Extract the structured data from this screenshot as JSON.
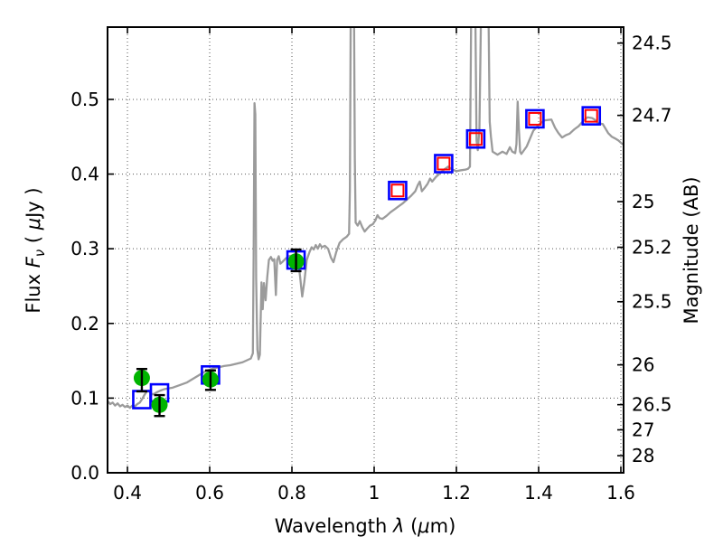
{
  "chart_data": {
    "type": "line",
    "title": "",
    "xlabel_segments": [
      {
        "t": "Wavelength ",
        "s": "n"
      },
      {
        "t": "λ",
        "s": "i"
      },
      {
        "t": " (",
        "s": "n"
      },
      {
        "t": "μ",
        "s": "i"
      },
      {
        "t": "m)",
        "s": "n"
      }
    ],
    "ylabel_left_segments": [
      {
        "t": "Flux ",
        "s": "n"
      },
      {
        "t": "F",
        "s": "i"
      },
      {
        "t": "ν",
        "s": "sub"
      },
      {
        "t": " ( ",
        "s": "n"
      },
      {
        "t": "μ",
        "s": "i"
      },
      {
        "t": "Jy )",
        "s": "n"
      }
    ],
    "ylabel_right": "Magnitude (AB)",
    "xlim": [
      0.3516,
      1.6066
    ],
    "ylim": [
      0.0,
      0.5968
    ],
    "grid": "dotted",
    "x_ticks": [
      {
        "value": 0.4,
        "label": "0.4"
      },
      {
        "value": 0.6,
        "label": "0.6"
      },
      {
        "value": 0.8,
        "label": "0.8"
      },
      {
        "value": 1.0,
        "label": "1"
      },
      {
        "value": 1.2,
        "label": "1.2"
      },
      {
        "value": 1.4,
        "label": "1.4"
      },
      {
        "value": 1.6,
        "label": "1.6"
      }
    ],
    "y_ticks_left": [
      {
        "value": 0.0,
        "label": "0.0"
      },
      {
        "value": 0.1,
        "label": "0.1"
      },
      {
        "value": 0.2,
        "label": "0.2"
      },
      {
        "value": 0.3,
        "label": "0.3"
      },
      {
        "value": 0.4,
        "label": "0.4"
      },
      {
        "value": 0.5,
        "label": "0.5"
      }
    ],
    "y_ticks_right": [
      {
        "label": "24.5",
        "flux": 0.5754
      },
      {
        "label": "24.7",
        "flux": 0.4786
      },
      {
        "label": "25",
        "flux": 0.3631
      },
      {
        "label": "25.2",
        "flux": 0.302
      },
      {
        "label": "25.5",
        "flux": 0.2291
      },
      {
        "label": "26",
        "flux": 0.1445
      },
      {
        "label": "26.5",
        "flux": 0.0912
      },
      {
        "label": "27",
        "flux": 0.0575
      },
      {
        "label": "28",
        "flux": 0.0229
      }
    ],
    "colors": {
      "spectrum": "#9b9b9b",
      "green_marker": "#00b400",
      "blue_square": "#0000ff",
      "red_square": "#ff0000",
      "errorbar": "#000000",
      "grid": "#555555",
      "frame": "#000000"
    },
    "series": [
      {
        "name": "model-spectrum",
        "type": "line",
        "points": [
          [
            0.352,
            0.096
          ],
          [
            0.358,
            0.092
          ],
          [
            0.364,
            0.094
          ],
          [
            0.37,
            0.09
          ],
          [
            0.376,
            0.093
          ],
          [
            0.382,
            0.089
          ],
          [
            0.388,
            0.091
          ],
          [
            0.394,
            0.088
          ],
          [
            0.4,
            0.09
          ],
          [
            0.406,
            0.087
          ],
          [
            0.412,
            0.09
          ],
          [
            0.418,
            0.089
          ],
          [
            0.424,
            0.092
          ],
          [
            0.43,
            0.094
          ],
          [
            0.436,
            0.099
          ],
          [
            0.441,
            0.104
          ],
          [
            0.446,
            0.108
          ],
          [
            0.451,
            0.11
          ],
          [
            0.456,
            0.107
          ],
          [
            0.461,
            0.105
          ],
          [
            0.466,
            0.106
          ],
          [
            0.472,
            0.108
          ],
          [
            0.48,
            0.11
          ],
          [
            0.49,
            0.112
          ],
          [
            0.5,
            0.113
          ],
          [
            0.51,
            0.114
          ],
          [
            0.52,
            0.116
          ],
          [
            0.53,
            0.118
          ],
          [
            0.545,
            0.121
          ],
          [
            0.56,
            0.126
          ],
          [
            0.575,
            0.131
          ],
          [
            0.59,
            0.136
          ],
          [
            0.6,
            0.138
          ],
          [
            0.61,
            0.14
          ],
          [
            0.62,
            0.141
          ],
          [
            0.635,
            0.143
          ],
          [
            0.65,
            0.144
          ],
          [
            0.665,
            0.146
          ],
          [
            0.68,
            0.148
          ],
          [
            0.692,
            0.151
          ],
          [
            0.7,
            0.153
          ],
          [
            0.705,
            0.16
          ],
          [
            0.707,
            0.3
          ],
          [
            0.709,
            0.495
          ],
          [
            0.711,
            0.48
          ],
          [
            0.713,
            0.26
          ],
          [
            0.716,
            0.165
          ],
          [
            0.719,
            0.152
          ],
          [
            0.722,
            0.158
          ],
          [
            0.726,
            0.255
          ],
          [
            0.729,
            0.219
          ],
          [
            0.732,
            0.254
          ],
          [
            0.736,
            0.231
          ],
          [
            0.74,
            0.262
          ],
          [
            0.744,
            0.285
          ],
          [
            0.749,
            0.289
          ],
          [
            0.753,
            0.284
          ],
          [
            0.757,
            0.286
          ],
          [
            0.761,
            0.238
          ],
          [
            0.764,
            0.285
          ],
          [
            0.768,
            0.29
          ],
          [
            0.772,
            0.28
          ],
          [
            0.778,
            0.283
          ],
          [
            0.785,
            0.287
          ],
          [
            0.792,
            0.29
          ],
          [
            0.8,
            0.291
          ],
          [
            0.808,
            0.292
          ],
          [
            0.815,
            0.285
          ],
          [
            0.82,
            0.262
          ],
          [
            0.825,
            0.236
          ],
          [
            0.83,
            0.255
          ],
          [
            0.836,
            0.285
          ],
          [
            0.843,
            0.296
          ],
          [
            0.848,
            0.302
          ],
          [
            0.853,
            0.299
          ],
          [
            0.858,
            0.305
          ],
          [
            0.863,
            0.3
          ],
          [
            0.868,
            0.306
          ],
          [
            0.873,
            0.302
          ],
          [
            0.88,
            0.304
          ],
          [
            0.888,
            0.3
          ],
          [
            0.895,
            0.288
          ],
          [
            0.901,
            0.282
          ],
          [
            0.908,
            0.296
          ],
          [
            0.916,
            0.308
          ],
          [
            0.925,
            0.313
          ],
          [
            0.933,
            0.316
          ],
          [
            0.939,
            0.32
          ],
          [
            0.941,
            0.38
          ],
          [
            0.943,
            0.62
          ],
          [
            0.951,
            0.62
          ],
          [
            0.953,
            0.42
          ],
          [
            0.955,
            0.335
          ],
          [
            0.96,
            0.331
          ],
          [
            0.965,
            0.337
          ],
          [
            0.971,
            0.329
          ],
          [
            0.977,
            0.323
          ],
          [
            0.983,
            0.327
          ],
          [
            0.99,
            0.331
          ],
          [
            0.997,
            0.333
          ],
          [
            1.003,
            0.338
          ],
          [
            1.008,
            0.345
          ],
          [
            1.013,
            0.341
          ],
          [
            1.02,
            0.34
          ],
          [
            1.03,
            0.344
          ],
          [
            1.04,
            0.349
          ],
          [
            1.05,
            0.353
          ],
          [
            1.06,
            0.357
          ],
          [
            1.07,
            0.361
          ],
          [
            1.08,
            0.366
          ],
          [
            1.09,
            0.371
          ],
          [
            1.1,
            0.377
          ],
          [
            1.106,
            0.385
          ],
          [
            1.111,
            0.39
          ],
          [
            1.116,
            0.377
          ],
          [
            1.122,
            0.381
          ],
          [
            1.13,
            0.387
          ],
          [
            1.136,
            0.394
          ],
          [
            1.141,
            0.39
          ],
          [
            1.15,
            0.396
          ],
          [
            1.16,
            0.401
          ],
          [
            1.17,
            0.406
          ],
          [
            1.18,
            0.41
          ],
          [
            1.19,
            0.406
          ],
          [
            1.2,
            0.404
          ],
          [
            1.21,
            0.405
          ],
          [
            1.222,
            0.406
          ],
          [
            1.228,
            0.407
          ],
          [
            1.233,
            0.41
          ],
          [
            1.236,
            0.62
          ],
          [
            1.246,
            0.62
          ],
          [
            1.249,
            0.445
          ],
          [
            1.252,
            0.432
          ],
          [
            1.256,
            0.46
          ],
          [
            1.26,
            0.62
          ],
          [
            1.278,
            0.62
          ],
          [
            1.281,
            0.47
          ],
          [
            1.284,
            0.45
          ],
          [
            1.288,
            0.43
          ],
          [
            1.3,
            0.426
          ],
          [
            1.312,
            0.43
          ],
          [
            1.322,
            0.427
          ],
          [
            1.33,
            0.436
          ],
          [
            1.336,
            0.43
          ],
          [
            1.343,
            0.428
          ],
          [
            1.346,
            0.44
          ],
          [
            1.349,
            0.497
          ],
          [
            1.352,
            0.46
          ],
          [
            1.355,
            0.43
          ],
          [
            1.358,
            0.427
          ],
          [
            1.371,
            0.437
          ],
          [
            1.387,
            0.458
          ],
          [
            1.402,
            0.467
          ],
          [
            1.415,
            0.472
          ],
          [
            1.431,
            0.473
          ],
          [
            1.44,
            0.462
          ],
          [
            1.448,
            0.455
          ],
          [
            1.457,
            0.449
          ],
          [
            1.466,
            0.452
          ],
          [
            1.475,
            0.454
          ],
          [
            1.487,
            0.46
          ],
          [
            1.497,
            0.464
          ],
          [
            1.51,
            0.472
          ],
          [
            1.519,
            0.476
          ],
          [
            1.53,
            0.475
          ],
          [
            1.536,
            0.473
          ],
          [
            1.545,
            0.468
          ],
          [
            1.556,
            0.467
          ],
          [
            1.569,
            0.455
          ],
          [
            1.578,
            0.45
          ],
          [
            1.585,
            0.448
          ],
          [
            1.594,
            0.445
          ],
          [
            1.602,
            0.441
          ],
          [
            1.606,
            0.44
          ]
        ]
      },
      {
        "name": "observed-photometry-green-circles",
        "type": "scatter",
        "marker": "filled-circle",
        "points": [
          {
            "wavelength": 0.435,
            "flux": 0.127,
            "err_lo": 0.109,
            "err_hi": 0.139
          },
          {
            "wavelength": 0.478,
            "flux": 0.091,
            "err_lo": 0.076,
            "err_hi": 0.104
          },
          {
            "wavelength": 0.602,
            "flux": 0.125,
            "err_lo": 0.111,
            "err_hi": 0.137
          },
          {
            "wavelength": 0.81,
            "flux": 0.283,
            "err_lo": 0.27,
            "err_hi": 0.299
          }
        ]
      },
      {
        "name": "blue-open-squares",
        "type": "scatter",
        "marker": "open-square",
        "points": [
          {
            "wavelength": 0.435,
            "flux": 0.098
          },
          {
            "wavelength": 0.478,
            "flux": 0.107
          },
          {
            "wavelength": 0.602,
            "flux": 0.131
          },
          {
            "wavelength": 0.81,
            "flux": 0.285
          },
          {
            "wavelength": 1.057,
            "flux": 0.378
          },
          {
            "wavelength": 1.169,
            "flux": 0.414
          },
          {
            "wavelength": 1.247,
            "flux": 0.447
          },
          {
            "wavelength": 1.391,
            "flux": 0.474
          },
          {
            "wavelength": 1.528,
            "flux": 0.478
          }
        ]
      },
      {
        "name": "red-open-squares",
        "type": "scatter",
        "marker": "open-square-small",
        "points": [
          {
            "wavelength": 1.057,
            "flux": 0.378
          },
          {
            "wavelength": 1.169,
            "flux": 0.414
          },
          {
            "wavelength": 1.247,
            "flux": 0.447
          },
          {
            "wavelength": 1.391,
            "flux": 0.474
          },
          {
            "wavelength": 1.528,
            "flux": 0.478
          }
        ]
      }
    ]
  }
}
